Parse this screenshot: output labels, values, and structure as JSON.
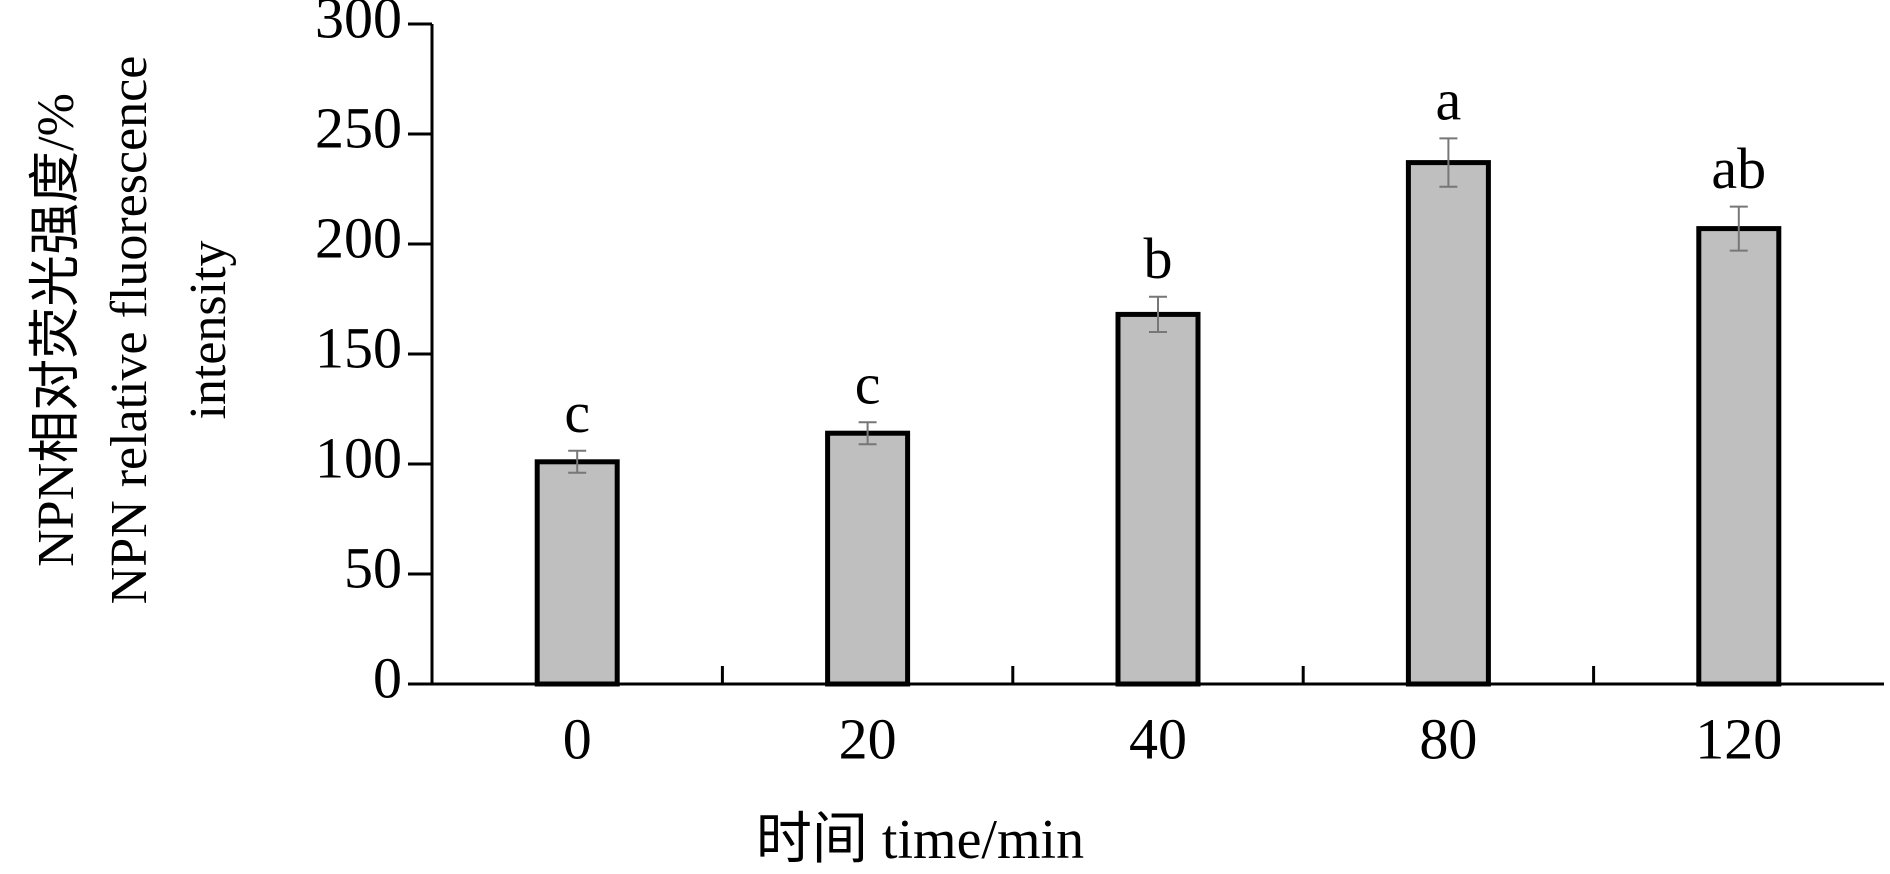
{
  "chart_data": {
    "type": "bar",
    "ylabel": [
      "NPN相对荧光强度/%",
      "NPN relative fluorescence",
      "intensity"
    ],
    "xlabel": "时间 time/min",
    "categories": [
      "0",
      "20",
      "40",
      "80",
      "120"
    ],
    "values": [
      101,
      114,
      168,
      237,
      207
    ],
    "errors": [
      5,
      5,
      8,
      11,
      10
    ],
    "significance": [
      "c",
      "c",
      "b",
      "a",
      "ab"
    ],
    "color": "#bfbfbf",
    "ylim": [
      0,
      300
    ],
    "yticks": [
      0,
      50,
      100,
      150,
      200,
      250,
      300
    ]
  }
}
